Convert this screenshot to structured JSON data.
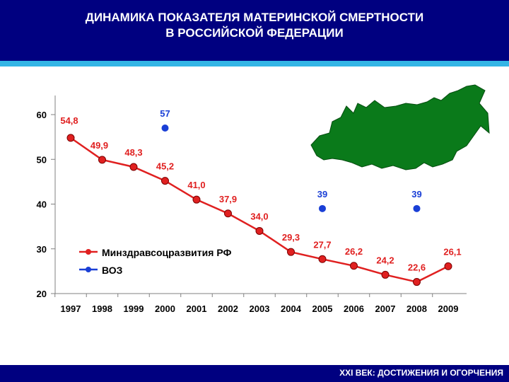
{
  "header": {
    "title_line1": "ДИНАМИКА ПОКАЗАТЕЛЯ МАТЕРИНСКОЙ СМЕРТНОСТИ",
    "title_line2": "В РОССИЙСКОЙ ФЕДЕРАЦИИ"
  },
  "footer": {
    "text": "XXI ВЕК: ДОСТИЖЕНИЯ И ОГОРЧЕНИЯ"
  },
  "colors": {
    "header": "#000080",
    "stripe": "#33b5e5",
    "ministry": "#e02020",
    "who": "#1a3fd6",
    "map": "#0a7a1a"
  },
  "chart_data": {
    "type": "line",
    "x": [
      "1997",
      "1998",
      "1999",
      "2000",
      "2001",
      "2002",
      "2003",
      "2004",
      "2005",
      "2006",
      "2007",
      "2008",
      "2009"
    ],
    "ylim": [
      20,
      60
    ],
    "yticks": [
      "20",
      "30",
      "40",
      "50",
      "60"
    ],
    "grid": false,
    "legend_position": "bottom-left",
    "series": [
      {
        "name": "Минздравсоцразвития РФ",
        "color": "#e02020",
        "values": [
          54.8,
          49.9,
          48.3,
          45.2,
          41.0,
          37.9,
          34.0,
          29.3,
          27.7,
          26.2,
          24.2,
          22.6,
          26.1
        ],
        "labels": [
          "54,8",
          "49,9",
          "48,3",
          "45,2",
          "41,0",
          "37,9",
          "34,0",
          "29,3",
          "27,7",
          "26,2",
          "24,2",
          "22,6",
          "26,1"
        ]
      },
      {
        "name": "ВОЗ",
        "color": "#1a3fd6",
        "points": [
          {
            "x": "2000",
            "value": 57,
            "label": "57"
          },
          {
            "x": "2005",
            "value": 39,
            "label": "39"
          },
          {
            "x": "2008",
            "value": 39,
            "label": "39"
          }
        ]
      }
    ]
  }
}
